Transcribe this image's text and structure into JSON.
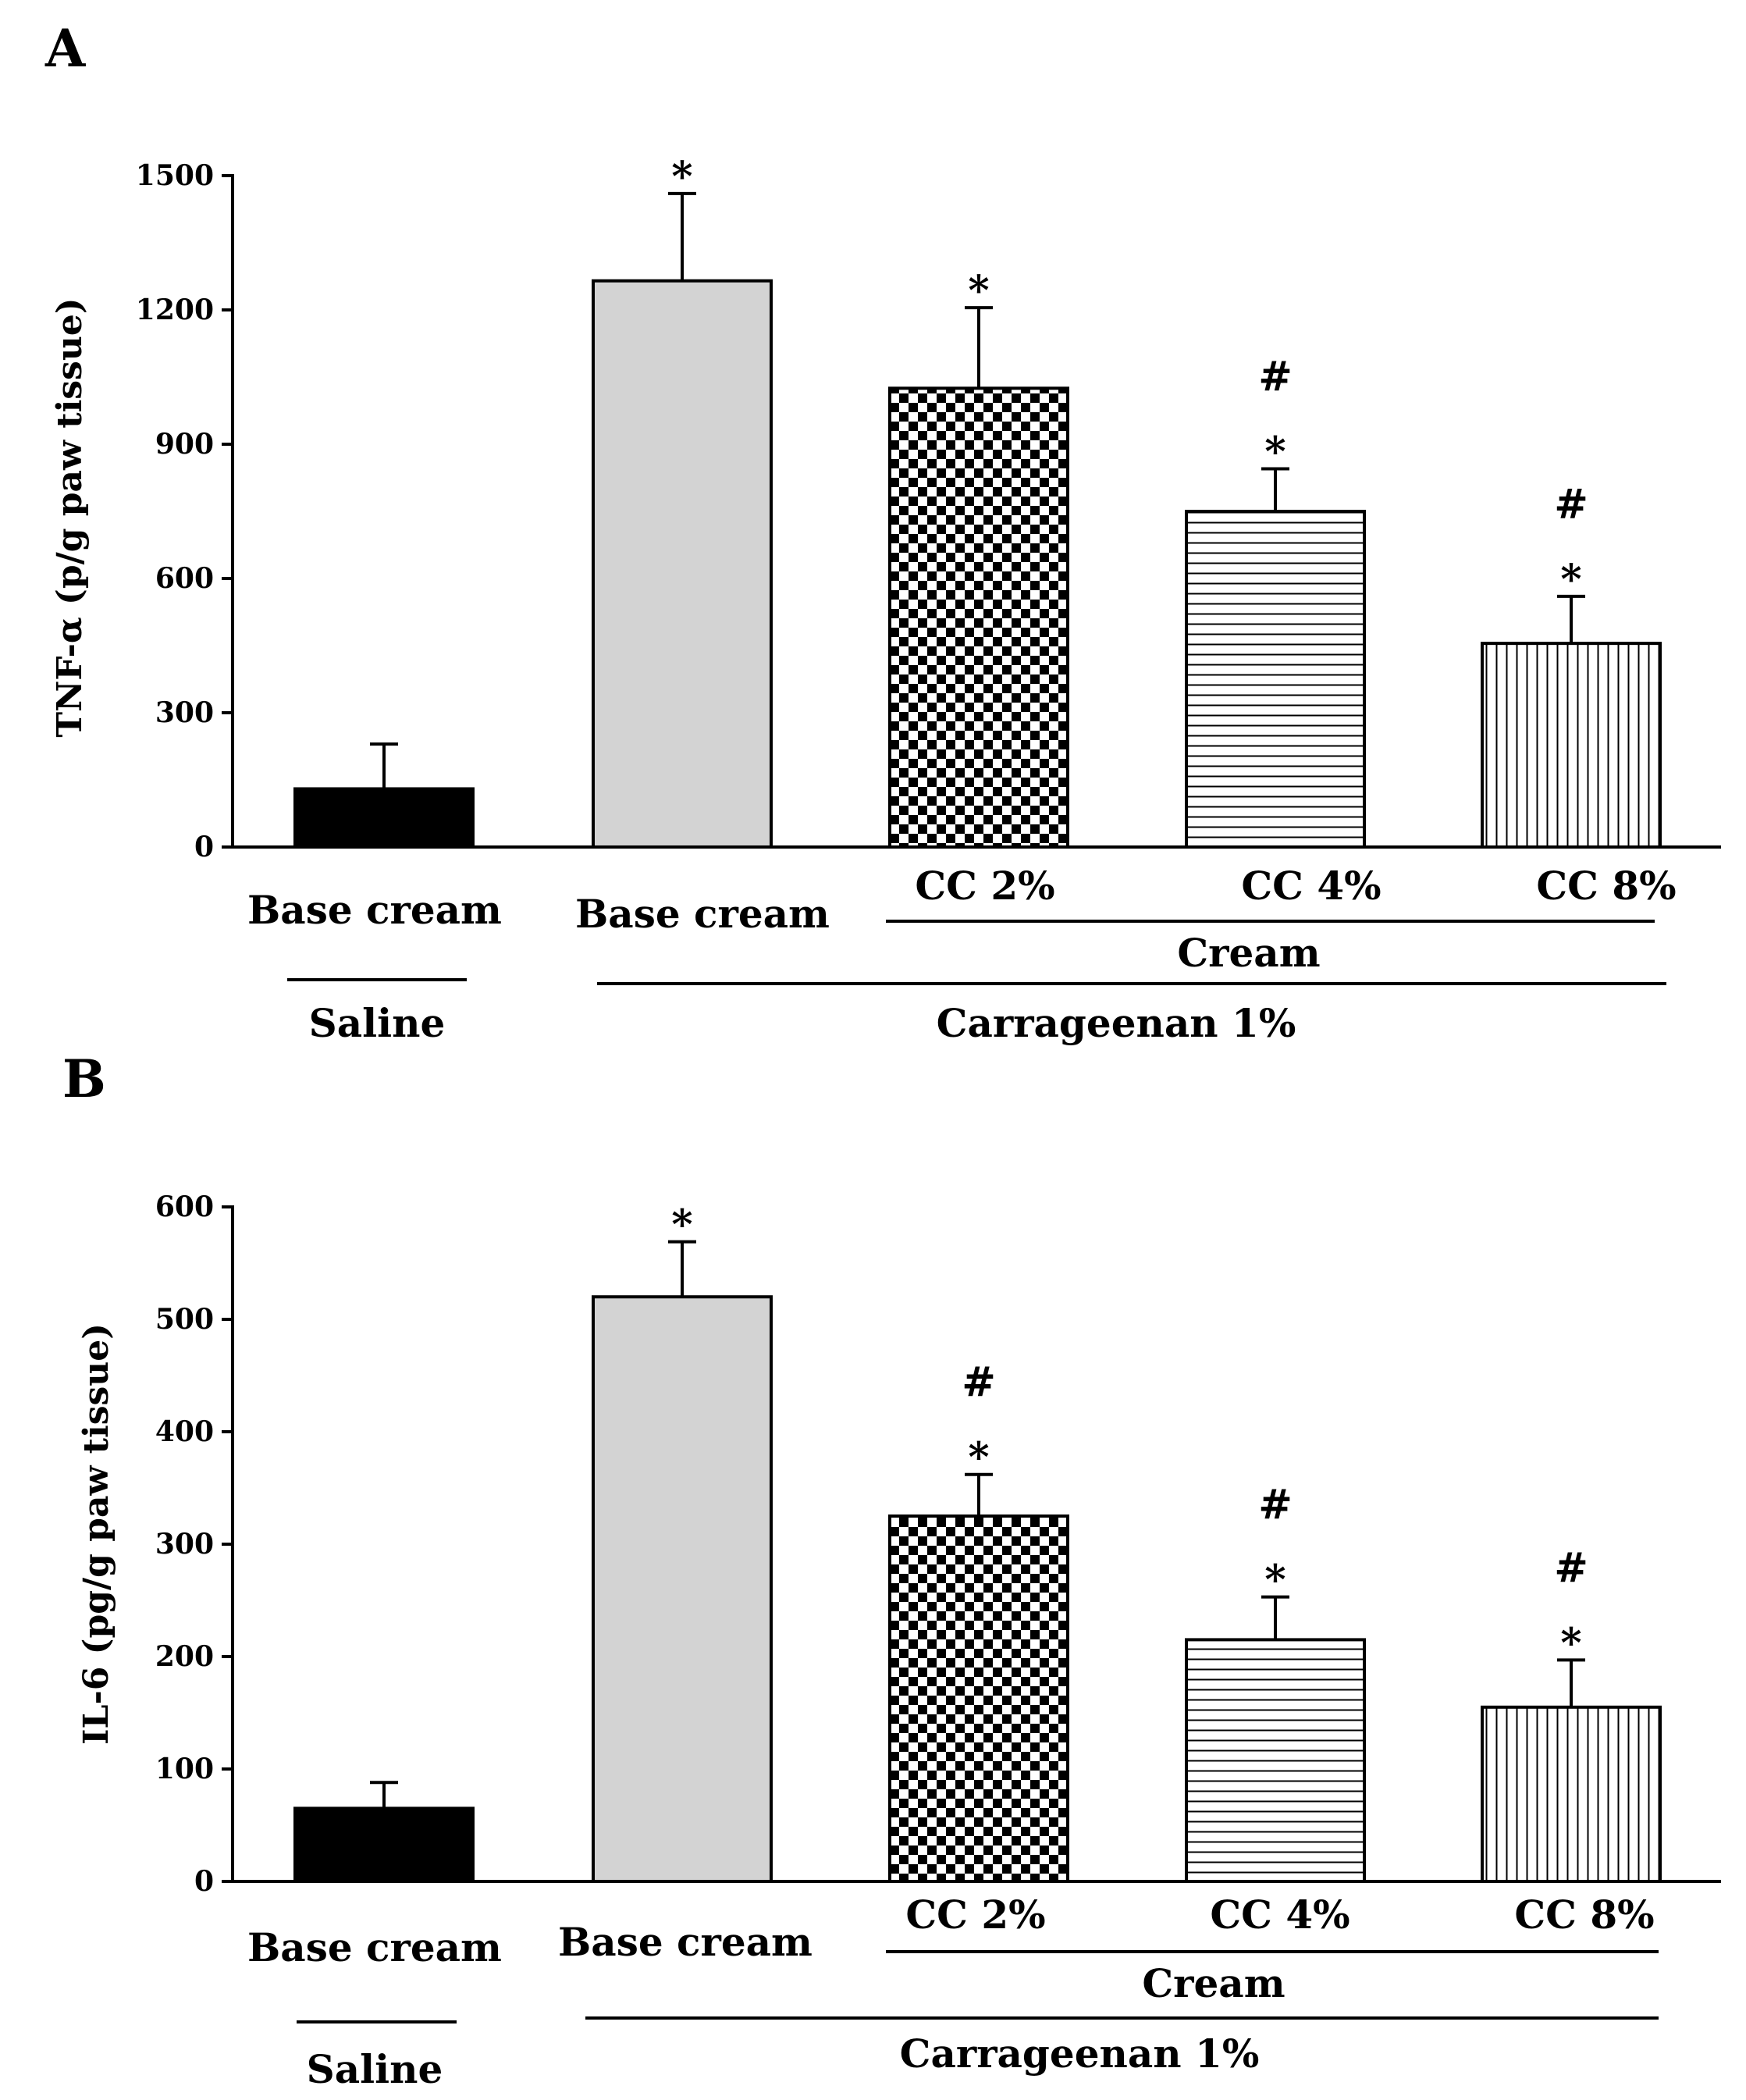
{
  "chart_data": [
    {
      "panel": "A",
      "type": "bar",
      "ylabel": "TNF-α (p/g paw tissue)",
      "ylim": [
        0,
        1500
      ],
      "yticks": [
        "0",
        "300",
        "600",
        "900",
        "1200",
        "1500"
      ],
      "categories": [
        "Base cream",
        "Base cream",
        "CC 2%",
        "CC 4%",
        "CC 8%"
      ],
      "values": [
        130,
        1265,
        1025,
        750,
        455
      ],
      "errors": [
        100,
        195,
        180,
        95,
        105
      ],
      "fills": [
        "black",
        "gray",
        "checker",
        "hlines",
        "vlines"
      ],
      "significance": [
        [],
        [
          "*"
        ],
        [
          "*"
        ],
        [
          "#",
          "*"
        ],
        [
          "#",
          "*"
        ]
      ],
      "groups": {
        "cream": "Cream",
        "carrageenan": "Carrageenan 1%",
        "saline": "Saline"
      }
    },
    {
      "panel": "B",
      "type": "bar",
      "ylabel": "IL-6 (pg/g paw tissue)",
      "ylim": [
        0,
        600
      ],
      "yticks": [
        "0",
        "100",
        "200",
        "300",
        "400",
        "500",
        "600"
      ],
      "categories": [
        "Base cream",
        "Base cream",
        "CC 2%",
        "CC 4%",
        "CC 8%"
      ],
      "values": [
        65,
        520,
        325,
        215,
        155
      ],
      "errors": [
        23,
        49,
        37,
        38,
        42
      ],
      "fills": [
        "black",
        "gray",
        "checker",
        "hlines",
        "vlines"
      ],
      "significance": [
        [],
        [
          "*"
        ],
        [
          "#",
          "*"
        ],
        [
          "#",
          "*"
        ],
        [
          "#",
          "*"
        ]
      ],
      "groups": {
        "cream": "Cream",
        "carrageenan": "Carrageenan 1%",
        "saline": "Saline"
      }
    }
  ]
}
